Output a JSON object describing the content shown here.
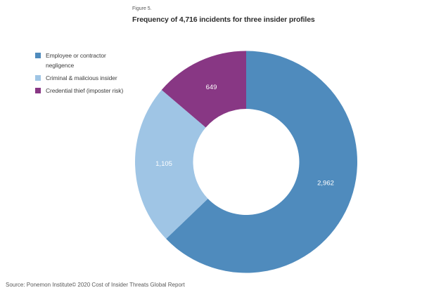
{
  "figure": {
    "label": "Figure 5.",
    "title": "Frequency of 4,716 incidents for three insider profiles"
  },
  "source": "Source: Ponemon Institute© 2020 Cost of Insider Threats Global Report",
  "chart_data": {
    "type": "pie",
    "subtype": "donut",
    "title": "Frequency of 4,716 incidents for three insider profiles",
    "total": 4716,
    "start_angle_deg": 0,
    "direction": "clockwise",
    "legend_position": "left",
    "inner_radius_ratio": 0.48,
    "value_label_color": "#ffffff",
    "segments": [
      {
        "label": "Employee or contractor negligence",
        "legend_lines": [
          "Employee or contractor",
          "negligence"
        ],
        "value": 2962,
        "value_label": "2,962",
        "color": "#4f8bbd",
        "label_angle_deg": 105
      },
      {
        "label": "Criminal & malicious insider",
        "legend_lines": [
          "Criminal & malicious insider"
        ],
        "value": 1105,
        "value_label": "1,105",
        "color": "#9fc5e5",
        "label_angle_deg": 268.5
      },
      {
        "label": "Credential thief (imposter risk)",
        "legend_lines": [
          "Credential thief (imposter risk)"
        ],
        "value": 649,
        "value_label": "649",
        "color": "#883784",
        "label_angle_deg": 335
      }
    ]
  }
}
